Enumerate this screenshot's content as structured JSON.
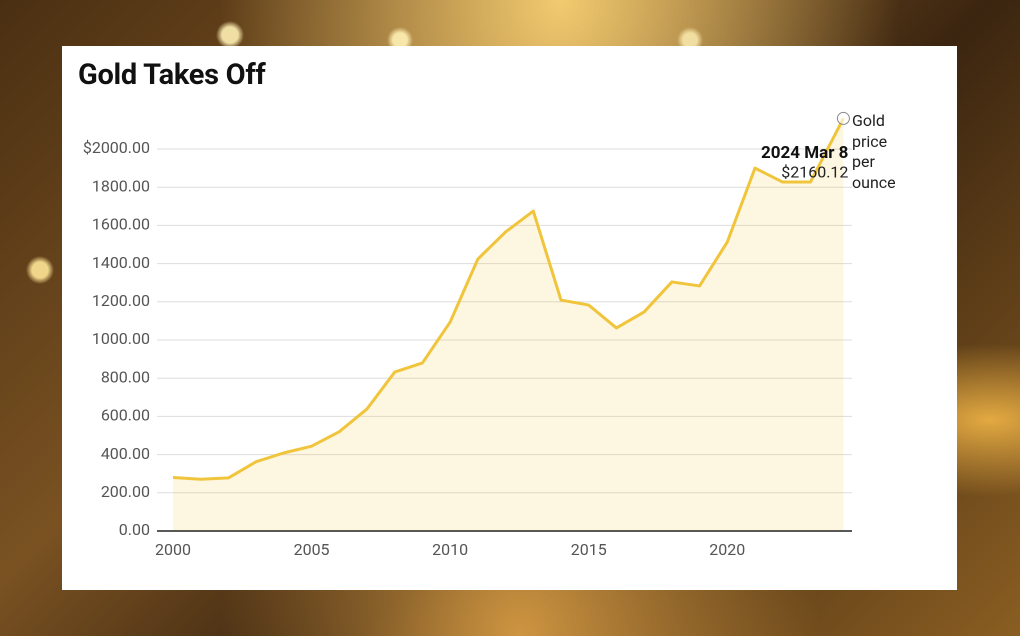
{
  "chart_data": {
    "type": "line",
    "title": "Gold Takes Off",
    "x": [
      2000,
      2001,
      2002,
      2003,
      2004,
      2005,
      2006,
      2007,
      2008,
      2009,
      2010,
      2011,
      2012,
      2013,
      2014,
      2015,
      2016,
      2017,
      2018,
      2019,
      2020,
      2021,
      2022,
      2023,
      2024.19
    ],
    "series": [
      {
        "name": "Gold price per ounce",
        "color": "#f0c53c",
        "values": [
          280,
          271,
          278,
          363,
          409,
          444,
          520,
          639,
          832,
          880,
          1094,
          1424,
          1566,
          1675,
          1209,
          1183,
          1063,
          1147,
          1304,
          1283,
          1513,
          1900,
          1827,
          1827,
          2160.12
        ],
        "value_labels": [
          null,
          null,
          null,
          null,
          null,
          null,
          null,
          null,
          null,
          null,
          null,
          null,
          null,
          null,
          null,
          null,
          null,
          null,
          null,
          null,
          null,
          null,
          null,
          null,
          "$2160.12"
        ]
      }
    ],
    "annotation": "2024 Mar 8",
    "xlim": [
      2000,
      2024.5
    ],
    "xticks": [
      2000,
      2005,
      2010,
      2015,
      2020
    ],
    "ylim": [
      0,
      2000
    ],
    "yticks": [
      {
        "value": 0,
        "label": "0.00"
      },
      {
        "value": 200,
        "label": "200.00"
      },
      {
        "value": 400,
        "label": "400.00"
      },
      {
        "value": 600,
        "label": "600.00"
      },
      {
        "value": 800,
        "label": "800.00"
      },
      {
        "value": 1000,
        "label": "1000.00"
      },
      {
        "value": 1200,
        "label": "1200.00"
      },
      {
        "value": 1400,
        "label": "1400.00"
      },
      {
        "value": 1600,
        "label": "1600.00"
      },
      {
        "value": 1800,
        "label": "1800.00"
      },
      {
        "value": 2000,
        "label": "$2000.00"
      }
    ],
    "grid": true
  }
}
